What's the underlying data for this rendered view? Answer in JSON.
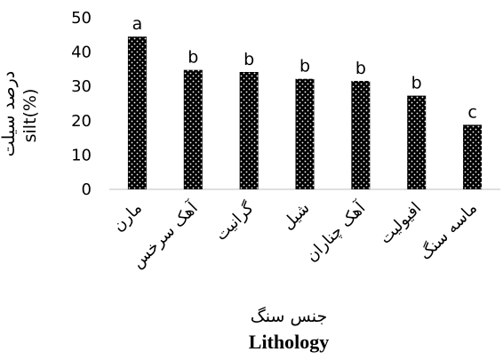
{
  "chart_data": {
    "type": "bar",
    "categories": [
      "مارن",
      "آهک سرخس",
      "گرانیت",
      "شیل",
      "آهک چناران",
      "افیولیت",
      "ماسه سنگ"
    ],
    "values": [
      44.5,
      34.8,
      34.2,
      32.2,
      31.6,
      27.3,
      18.8
    ],
    "significance_letters": [
      "a",
      "b",
      "b",
      "b",
      "b",
      "b",
      "c"
    ],
    "ylabel_fa": "درصد سیلت",
    "ylabel_en": "silt(%)",
    "xlabel_fa": "جنس سنگ",
    "xlabel_en": "Lithology",
    "ylim": [
      0,
      50
    ],
    "yticks": [
      0,
      10,
      20,
      30,
      40,
      50
    ],
    "bar_pattern": "black with white dots",
    "grid": false,
    "legend": "none"
  }
}
